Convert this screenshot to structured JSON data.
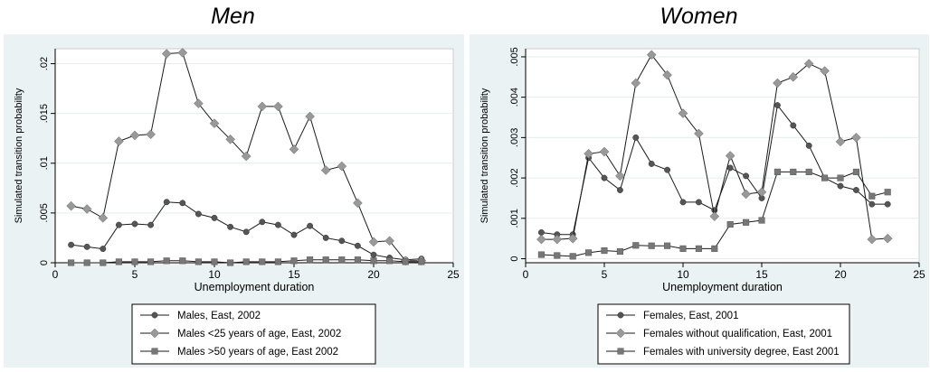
{
  "chart_data": [
    {
      "type": "line",
      "title": "Men",
      "xlabel": "Unemployment duration",
      "ylabel": "Simulated transition probability",
      "xlim": [
        0,
        25
      ],
      "ylim": [
        0,
        0.0215
      ],
      "x_ticks": [
        0,
        5,
        10,
        15,
        20,
        25
      ],
      "x_tick_labels": [
        "0",
        "5",
        "10",
        "15",
        "20",
        "25"
      ],
      "y_ticks": [
        0,
        0.005,
        0.01,
        0.015,
        0.02
      ],
      "y_tick_labels": [
        "0",
        ".005",
        ".01",
        ".015",
        ".02"
      ],
      "grid": true,
      "legend_position": "bottom",
      "x": [
        1,
        2,
        3,
        4,
        5,
        6,
        7,
        8,
        9,
        10,
        11,
        12,
        13,
        14,
        15,
        16,
        17,
        18,
        19,
        20,
        21,
        22,
        23
      ],
      "series": [
        {
          "name": "Males, East, 2002",
          "marker": "circle",
          "color": "#555555",
          "values": [
            0.0018,
            0.0016,
            0.0014,
            0.0038,
            0.0039,
            0.0038,
            0.0061,
            0.006,
            0.0049,
            0.0045,
            0.0036,
            0.0031,
            0.0041,
            0.0038,
            0.0028,
            0.0037,
            0.0025,
            0.0022,
            0.0017,
            0.0008,
            0.0005,
            0.0003,
            0.0004
          ]
        },
        {
          "name": "Males <25 years of age, East, 2002",
          "marker": "diamond",
          "color": "#999999",
          "values": [
            0.0057,
            0.0054,
            0.0045,
            0.0122,
            0.0128,
            0.0129,
            0.021,
            0.0211,
            0.016,
            0.014,
            0.0124,
            0.0107,
            0.0157,
            0.0157,
            0.0114,
            0.0147,
            0.0093,
            0.0097,
            0.006,
            0.0021,
            0.0022,
            0.0002,
            0.0002
          ]
        },
        {
          "name": "Males >50 years of age, East 2002",
          "marker": "square",
          "color": "#777777",
          "values": [
            0.0,
            0.0,
            0.0,
            0.0001,
            0.0001,
            0.0001,
            0.0002,
            0.0002,
            0.0001,
            0.0001,
            0.0,
            0.0001,
            0.0001,
            0.0001,
            0.0002,
            0.0003,
            0.0003,
            0.0003,
            0.0003,
            0.0002,
            0.0002,
            0.0001,
            0.0001
          ]
        }
      ]
    },
    {
      "type": "line",
      "title": "Women",
      "xlabel": "Unemployment duration",
      "ylabel": "Simulated transition probability",
      "xlim": [
        0,
        25
      ],
      "ylim": [
        -0.0001,
        0.0052
      ],
      "x_ticks": [
        0,
        5,
        10,
        15,
        20,
        25
      ],
      "x_tick_labels": [
        "0",
        "5",
        "10",
        "15",
        "20",
        "25"
      ],
      "y_ticks": [
        0,
        0.001,
        0.002,
        0.003,
        0.004,
        0.005
      ],
      "y_tick_labels": [
        "0",
        ".001",
        ".002",
        ".003",
        ".004",
        ".005"
      ],
      "grid": true,
      "legend_position": "bottom",
      "x": [
        1,
        2,
        3,
        4,
        5,
        6,
        7,
        8,
        9,
        10,
        11,
        12,
        13,
        14,
        15,
        16,
        17,
        18,
        19,
        20,
        21,
        22,
        23
      ],
      "series": [
        {
          "name": "Females, East, 2001",
          "marker": "circle",
          "color": "#555555",
          "values": [
            0.00065,
            0.0006,
            0.0006,
            0.0025,
            0.002,
            0.0017,
            0.003,
            0.00235,
            0.0022,
            0.0014,
            0.0014,
            0.0012,
            0.00225,
            0.00205,
            0.0015,
            0.0038,
            0.0033,
            0.0028,
            0.002,
            0.0018,
            0.0017,
            0.00135,
            0.00135
          ]
        },
        {
          "name": "Females without qualification, East, 2001",
          "marker": "diamond",
          "color": "#999999",
          "values": [
            0.00048,
            0.00048,
            0.0005,
            0.0026,
            0.00265,
            0.00205,
            0.00435,
            0.00505,
            0.00455,
            0.0036,
            0.0031,
            0.00105,
            0.00255,
            0.0016,
            0.00165,
            0.00435,
            0.0045,
            0.00483,
            0.00465,
            0.0029,
            0.003,
            0.00048,
            0.0005
          ]
        },
        {
          "name": "Females with university degree, East 2001",
          "marker": "square",
          "color": "#777777",
          "values": [
            0.0001,
            8e-05,
            6e-05,
            0.00015,
            0.0002,
            0.00018,
            0.00033,
            0.00032,
            0.00032,
            0.00025,
            0.00025,
            0.00025,
            0.00085,
            0.0009,
            0.00095,
            0.00215,
            0.00215,
            0.00215,
            0.002,
            0.002,
            0.00215,
            0.00155,
            0.00165
          ]
        }
      ]
    }
  ]
}
